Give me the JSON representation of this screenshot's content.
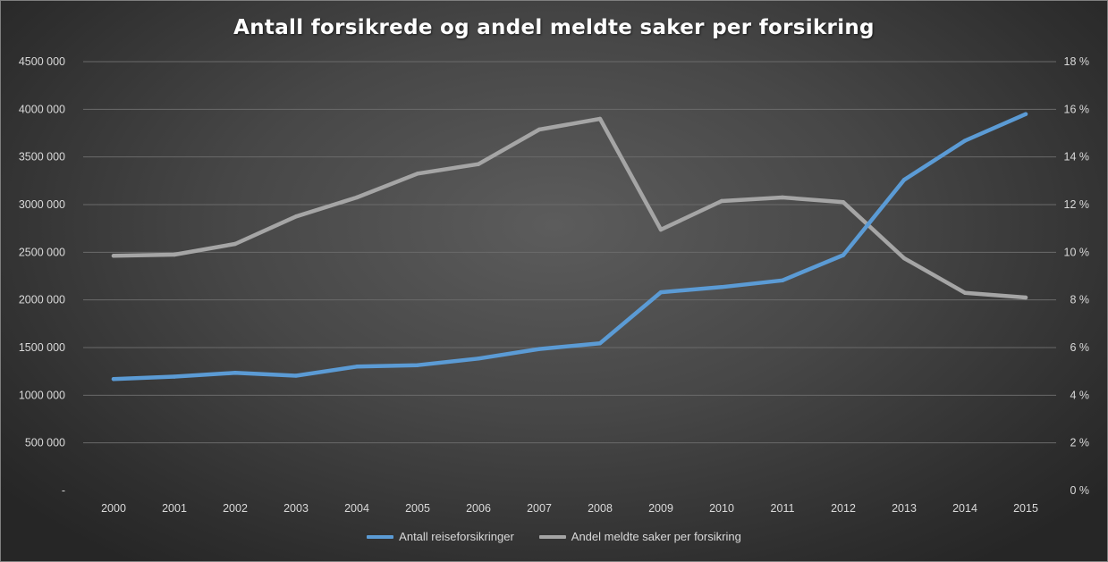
{
  "chart_data": {
    "type": "line",
    "title": "Antall forsikrede og andel meldte saker per forsikring",
    "categories": [
      "2000",
      "2001",
      "2002",
      "2003",
      "2004",
      "2005",
      "2006",
      "2007",
      "2008",
      "2009",
      "2010",
      "2011",
      "2012",
      "2013",
      "2014",
      "2015"
    ],
    "y_left": {
      "range": [
        0,
        4500000
      ],
      "ticks": [
        {
          "value": 0,
          "label": "-"
        },
        {
          "value": 500000,
          "label": "500 000"
        },
        {
          "value": 1000000,
          "label": "1000 000"
        },
        {
          "value": 1500000,
          "label": "1500 000"
        },
        {
          "value": 2000000,
          "label": "2000 000"
        },
        {
          "value": 2500000,
          "label": "2500 000"
        },
        {
          "value": 3000000,
          "label": "3000 000"
        },
        {
          "value": 3500000,
          "label": "3500 000"
        },
        {
          "value": 4000000,
          "label": "4000 000"
        },
        {
          "value": 4500000,
          "label": "4500 000"
        }
      ]
    },
    "y_right": {
      "range": [
        0,
        18
      ],
      "ticks": [
        {
          "value": 0,
          "label": "0 %"
        },
        {
          "value": 2,
          "label": "2 %"
        },
        {
          "value": 4,
          "label": "4 %"
        },
        {
          "value": 6,
          "label": "6 %"
        },
        {
          "value": 8,
          "label": "8 %"
        },
        {
          "value": 10,
          "label": "10 %"
        },
        {
          "value": 12,
          "label": "12 %"
        },
        {
          "value": 14,
          "label": "14 %"
        },
        {
          "value": 16,
          "label": "16 %"
        },
        {
          "value": 18,
          "label": "18 %"
        }
      ]
    },
    "grid": true,
    "legend_position": "bottom",
    "series": [
      {
        "name": "Antall reiseforsikringer",
        "axis": "left",
        "color": "#5b9bd5",
        "values": [
          1170000,
          1195000,
          1235000,
          1205000,
          1300000,
          1315000,
          1385000,
          1485000,
          1545000,
          2080000,
          2135000,
          2205000,
          2470000,
          3260000,
          3670000,
          3950000
        ]
      },
      {
        "name": "Andel meldte saker per forsikring",
        "axis": "right",
        "color": "#a5a5a5",
        "values": [
          9.85,
          9.9,
          10.35,
          11.5,
          12.3,
          13.3,
          13.7,
          15.15,
          15.6,
          10.95,
          12.15,
          12.3,
          12.1,
          9.75,
          8.3,
          8.1
        ]
      }
    ]
  }
}
